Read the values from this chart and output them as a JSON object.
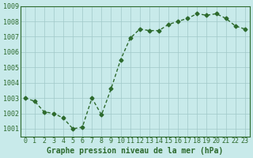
{
  "x": [
    0,
    1,
    2,
    3,
    4,
    5,
    6,
    7,
    8,
    9,
    10,
    11,
    12,
    13,
    14,
    15,
    16,
    17,
    18,
    19,
    20,
    21,
    22,
    23
  ],
  "y": [
    1003.0,
    1002.8,
    1002.1,
    1002.0,
    1001.7,
    1001.0,
    1001.1,
    1003.0,
    1001.9,
    1003.6,
    1005.5,
    1006.9,
    1007.5,
    1007.4,
    1007.4,
    1007.8,
    1008.0,
    1008.2,
    1008.5,
    1008.4,
    1008.5,
    1008.2,
    1007.7,
    1007.5
  ],
  "line_color": "#2d6a2d",
  "marker_color": "#2d6a2d",
  "bg_color": "#c8eaea",
  "grid_color": "#a0c8c8",
  "label_color": "#2d6a2d",
  "title": "Graphe pression niveau de la mer (hPa)",
  "xlim": [
    -0.5,
    23.5
  ],
  "ylim": [
    1000.5,
    1009.0
  ],
  "yticks": [
    1001,
    1002,
    1003,
    1004,
    1005,
    1006,
    1007,
    1008,
    1009
  ],
  "xticks": [
    0,
    1,
    2,
    3,
    4,
    5,
    6,
    7,
    8,
    9,
    10,
    11,
    12,
    13,
    14,
    15,
    16,
    17,
    18,
    19,
    20,
    21,
    22,
    23
  ],
  "tick_fontsize": 6,
  "title_fontsize": 7,
  "linewidth": 1.0,
  "markersize": 2.5
}
